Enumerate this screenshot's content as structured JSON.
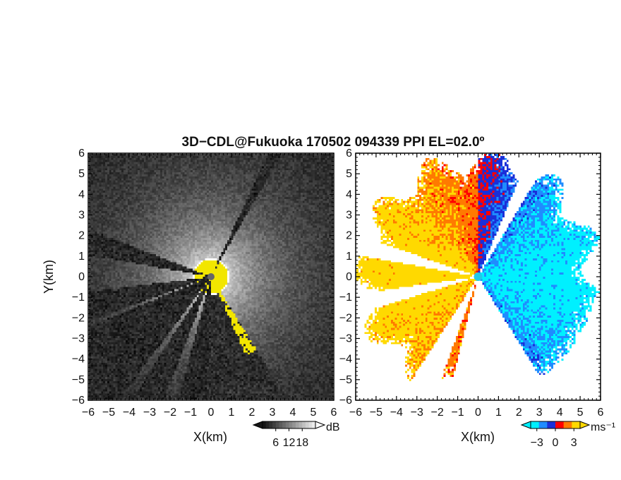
{
  "title": "3D−CDL@Fukuoka 170502 094339 PPI EL=02.0º",
  "colors": {
    "radar_site": "#666666",
    "radar_site_doppler": "#22c8e8",
    "snr_strong": "#f2e600"
  },
  "chart_data": [
    {
      "type": "heatmap",
      "name": "reflectivity-panel",
      "xlabel": "X(km)",
      "ylabel": "Y(km)",
      "xlim": [
        -6,
        6
      ],
      "ylim": [
        -6,
        6
      ],
      "xticks": [
        "−6",
        "−5",
        "−4",
        "−3",
        "−2",
        "−1",
        "0",
        "1",
        "2",
        "3",
        "4",
        "5",
        "6"
      ],
      "yticks": [
        "6",
        "5",
        "4",
        "3",
        "2",
        "1",
        "0",
        "−1",
        "−2",
        "−3",
        "−4",
        "−5",
        "−6"
      ],
      "colorbar": {
        "unit": "dB",
        "tick_labels": [
          "6",
          "12",
          "18"
        ],
        "ticks": [
          6,
          12,
          18
        ],
        "range": [
          0,
          24
        ],
        "palette": "grayscale"
      },
      "radar_site": [
        0,
        0
      ],
      "blocked_sectors_deg_from_north": [
        [
          -110,
          -97
        ],
        [
          -80,
          -69
        ],
        [
          -143,
          -112
        ],
        [
          -159,
          -147
        ],
        [
          -178,
          -165
        ],
        [
          25,
          30
        ]
      ]
    },
    {
      "type": "heatmap",
      "name": "doppler-velocity-panel",
      "xlabel": "X(km)",
      "ylabel": "",
      "xlim": [
        -6,
        6
      ],
      "ylim": [
        -6,
        6
      ],
      "xticks": [
        "−6",
        "−5",
        "−4",
        "−3",
        "−2",
        "−1",
        "0",
        "1",
        "2",
        "3",
        "4",
        "5",
        "6"
      ],
      "yticks": [
        "6",
        "5",
        "4",
        "3",
        "2",
        "1",
        "0",
        "−1",
        "−2",
        "−3",
        "−4",
        "−5",
        "−6"
      ],
      "colorbar": {
        "unit": "ms⁻¹",
        "tick_labels": [
          "−3",
          "0",
          "3"
        ],
        "ticks": [
          -3,
          0,
          3
        ],
        "range": [
          -4,
          4
        ],
        "palette": [
          "#00f0ff",
          "#1f8cff",
          "#1a2fd8",
          "#ff0000",
          "#ff7a00",
          "#ffd900"
        ]
      },
      "radar_site": [
        0,
        0
      ],
      "no_data_sectors_deg_from_north": [
        [
          -107,
          -98
        ],
        [
          -80,
          -71
        ],
        [
          -160,
          -147
        ],
        [
          -180,
          -166
        ],
        [
          23,
          31
        ]
      ]
    }
  ]
}
